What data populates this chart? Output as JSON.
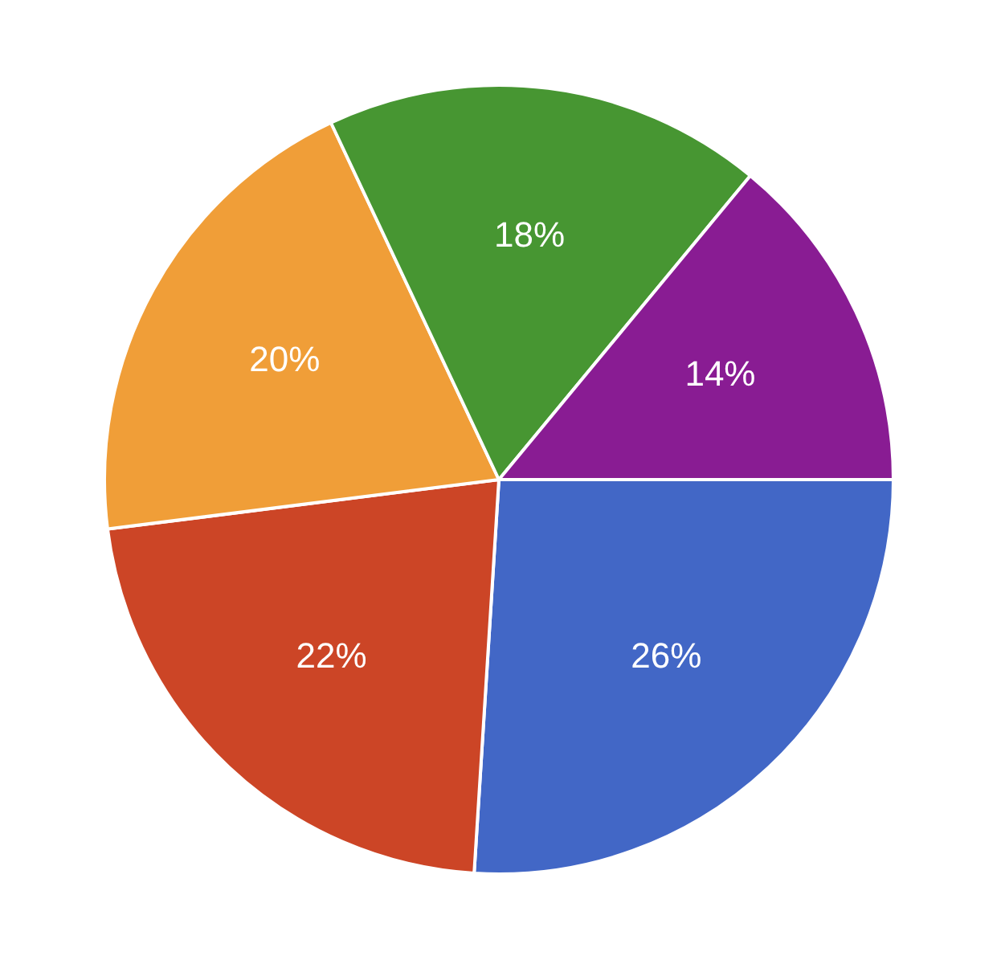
{
  "chart_data": {
    "type": "pie",
    "categories": [
      null,
      null,
      null,
      null,
      null
    ],
    "values": [
      26,
      22,
      20,
      18,
      14
    ],
    "colors": [
      "#4267c6",
      "#cc4526",
      "#f09e38",
      "#479632",
      "#891c93"
    ],
    "value_labels": [
      "26%",
      "22%",
      "20%",
      "18%",
      "14%"
    ],
    "legend": false
  }
}
